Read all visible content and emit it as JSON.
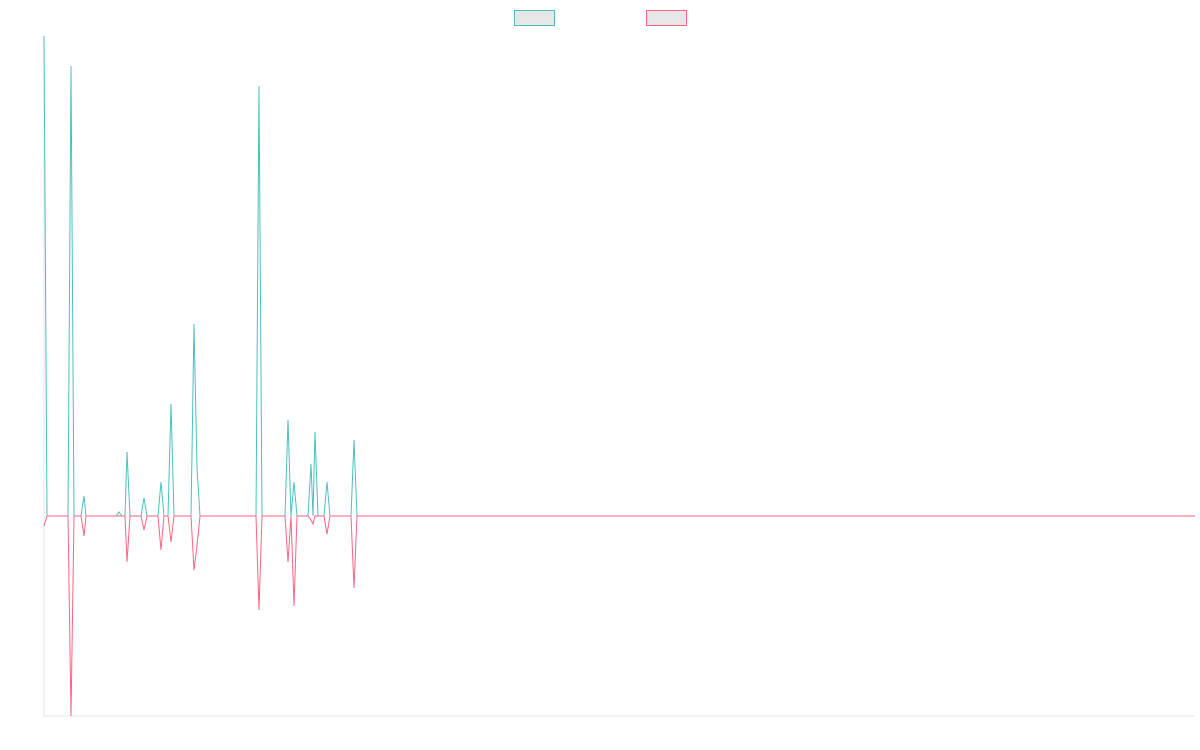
{
  "chart_data": {
    "type": "line",
    "x": [
      0,
      3,
      24,
      27,
      30,
      37,
      40,
      42,
      72,
      75,
      78,
      81,
      83,
      86,
      97,
      100,
      103,
      114,
      117,
      120,
      124,
      127,
      130,
      147,
      150,
      153,
      156,
      212,
      215,
      218,
      241,
      244,
      247,
      250,
      253,
      264,
      267,
      269,
      271,
      274,
      280,
      283,
      286,
      307,
      310,
      313,
      1151
    ],
    "series": [
      {
        "color": "#4bc0c0",
        "values": [
          12,
          0,
          0,
          11.25,
          0,
          0,
          0.5,
          0,
          0,
          0.1,
          0,
          0,
          1.6,
          0,
          0,
          0.45,
          0,
          0,
          0.85,
          0,
          0,
          2.8,
          0,
          0,
          4.8,
          1.2,
          0,
          0,
          10.75,
          0,
          0,
          2.4,
          0,
          0.85,
          0,
          0,
          1.3,
          0,
          2.1,
          0,
          0,
          0.85,
          0,
          0,
          1.9,
          0,
          0
        ]
      },
      {
        "color": "#ff6384",
        "values": [
          -0.25,
          0,
          0,
          -5,
          0,
          0,
          -0.5,
          0,
          0,
          0,
          0,
          0,
          -1.15,
          0,
          0,
          -0.35,
          0,
          0,
          -0.85,
          0,
          0,
          -0.65,
          0,
          0,
          -1.35,
          -0.75,
          0,
          0,
          -2.35,
          0,
          0,
          -1.15,
          0,
          -2.25,
          0,
          0,
          -0.1,
          -0.2,
          0,
          0,
          0,
          -0.45,
          0,
          0,
          -1.8,
          0,
          0
        ]
      }
    ],
    "xlim": [
      0,
      1151
    ],
    "ylim": [
      -5,
      12
    ],
    "legend": "top"
  }
}
